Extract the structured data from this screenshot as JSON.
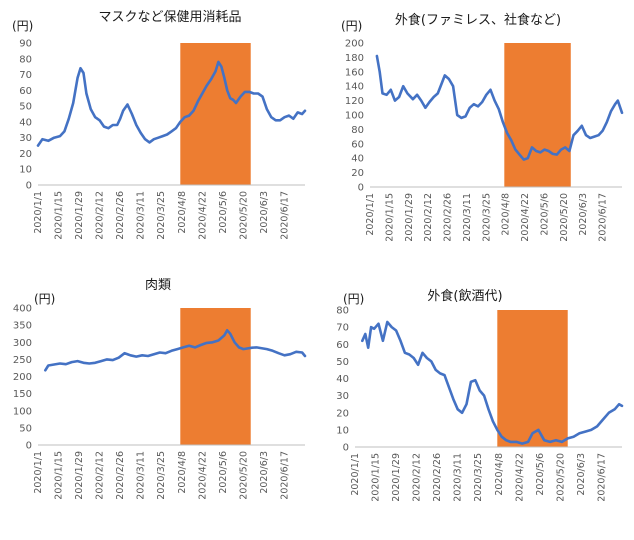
{
  "colors": {
    "line": "#4472c4",
    "highlight": "#ed7d31",
    "axis": "#bfbfbf"
  },
  "chart_data": [
    {
      "type": "line",
      "title": "マスクなど保健用消耗品",
      "unit": "(円)",
      "ylim": [
        0,
        90
      ],
      "yticks": [
        0,
        10,
        20,
        30,
        40,
        50,
        60,
        70,
        80,
        90
      ],
      "xlim": [
        "2020-01-01",
        "2020-07-01"
      ],
      "xtick_labels": [
        "2020/1/1",
        "2020/1/15",
        "2020/1/29",
        "2020/2/12",
        "2020/2/26",
        "2020/3/11",
        "2020/3/25",
        "2020/4/8",
        "2020/4/22",
        "2020/5/6",
        "2020/5/20",
        "2020/6/3",
        "2020/6/17"
      ],
      "highlight_range": [
        "2020-04-07",
        "2020-05-25"
      ],
      "grid": false,
      "series": [
        {
          "x": [
            "2020-01-01",
            "2020-01-04",
            "2020-01-08",
            "2020-01-12",
            "2020-01-16",
            "2020-01-19",
            "2020-01-22",
            "2020-01-25",
            "2020-01-28",
            "2020-01-30",
            "2020-02-01",
            "2020-02-03",
            "2020-02-06",
            "2020-02-09",
            "2020-02-12",
            "2020-02-15",
            "2020-02-18",
            "2020-02-21",
            "2020-02-24",
            "2020-02-26",
            "2020-02-28",
            "2020-03-02",
            "2020-03-05",
            "2020-03-08",
            "2020-03-11",
            "2020-03-14",
            "2020-03-17",
            "2020-03-20",
            "2020-03-23",
            "2020-03-26",
            "2020-03-29",
            "2020-04-01",
            "2020-04-04",
            "2020-04-07",
            "2020-04-10",
            "2020-04-13",
            "2020-04-16",
            "2020-04-19",
            "2020-04-22",
            "2020-04-25",
            "2020-04-28",
            "2020-05-01",
            "2020-05-03",
            "2020-05-05",
            "2020-05-07",
            "2020-05-09",
            "2020-05-11",
            "2020-05-13",
            "2020-05-15",
            "2020-05-18",
            "2020-05-21",
            "2020-05-24",
            "2020-05-27",
            "2020-05-30",
            "2020-06-02",
            "2020-06-05",
            "2020-06-08",
            "2020-06-11",
            "2020-06-14",
            "2020-06-17",
            "2020-06-20",
            "2020-06-23",
            "2020-06-26",
            "2020-06-29",
            "2020-07-01"
          ],
          "y": [
            25,
            29,
            28,
            30,
            31,
            34,
            42,
            52,
            68,
            74,
            71,
            58,
            48,
            43,
            41,
            37,
            36,
            38,
            38,
            42,
            47,
            51,
            45,
            38,
            33,
            29,
            27,
            29,
            30,
            31,
            32,
            34,
            36,
            40,
            43,
            44,
            47,
            53,
            58,
            63,
            67,
            72,
            78,
            75,
            68,
            60,
            55,
            54,
            52,
            56,
            59,
            59,
            58,
            58,
            56,
            48,
            43,
            41,
            41,
            43,
            44,
            42,
            46,
            45,
            47
          ]
        }
      ]
    },
    {
      "type": "line",
      "title": "外食(ファミレス、社食など)",
      "unit": "(円)",
      "ylim": [
        0,
        200
      ],
      "yticks": [
        0,
        20,
        40,
        60,
        80,
        100,
        120,
        140,
        160,
        180,
        200
      ],
      "xlim": [
        "2020-01-01",
        "2020-07-01"
      ],
      "xtick_labels": [
        "2020/1/1",
        "2020/1/15",
        "2020/1/29",
        "2020/2/12",
        "2020/2/26",
        "2020/3/11",
        "2020/3/25",
        "2020/4/8",
        "2020/4/22",
        "2020/5/6",
        "2020/5/20",
        "2020/6/3",
        "2020/6/17"
      ],
      "highlight_range": [
        "2020-04-07",
        "2020-05-25"
      ],
      "grid": false,
      "series": [
        {
          "x": [
            "2020-01-06",
            "2020-01-08",
            "2020-01-10",
            "2020-01-13",
            "2020-01-16",
            "2020-01-19",
            "2020-01-22",
            "2020-01-25",
            "2020-01-28",
            "2020-02-01",
            "2020-02-04",
            "2020-02-07",
            "2020-02-10",
            "2020-02-13",
            "2020-02-16",
            "2020-02-19",
            "2020-02-22",
            "2020-02-24",
            "2020-02-27",
            "2020-03-01",
            "2020-03-04",
            "2020-03-07",
            "2020-03-10",
            "2020-03-13",
            "2020-03-16",
            "2020-03-19",
            "2020-03-22",
            "2020-03-25",
            "2020-03-28",
            "2020-03-31",
            "2020-04-03",
            "2020-04-06",
            "2020-04-09",
            "2020-04-12",
            "2020-04-15",
            "2020-04-18",
            "2020-04-21",
            "2020-04-24",
            "2020-04-27",
            "2020-04-30",
            "2020-05-03",
            "2020-05-06",
            "2020-05-09",
            "2020-05-12",
            "2020-05-15",
            "2020-05-18",
            "2020-05-21",
            "2020-05-24",
            "2020-05-27",
            "2020-05-30",
            "2020-06-02",
            "2020-06-05",
            "2020-06-08",
            "2020-06-11",
            "2020-06-14",
            "2020-06-17",
            "2020-06-20",
            "2020-06-23",
            "2020-06-26",
            "2020-06-28",
            "2020-07-01"
          ],
          "y": [
            182,
            160,
            130,
            128,
            135,
            120,
            125,
            140,
            130,
            122,
            128,
            120,
            110,
            118,
            125,
            130,
            145,
            155,
            150,
            140,
            100,
            96,
            98,
            110,
            115,
            112,
            118,
            128,
            135,
            120,
            108,
            90,
            75,
            65,
            52,
            45,
            38,
            40,
            55,
            50,
            48,
            52,
            50,
            46,
            45,
            52,
            55,
            50,
            72,
            78,
            85,
            72,
            68,
            70,
            72,
            78,
            90,
            105,
            115,
            120,
            103
          ]
        }
      ]
    },
    {
      "type": "line",
      "title": "肉類",
      "unit": "(円)",
      "ylim": [
        0,
        400
      ],
      "yticks": [
        0,
        50,
        100,
        150,
        200,
        250,
        300,
        350,
        400
      ],
      "xlim": [
        "2020-01-01",
        "2020-07-01"
      ],
      "xtick_labels": [
        "2020/1/1",
        "2020/1/15",
        "2020/1/29",
        "2020/2/12",
        "2020/2/26",
        "2020/3/11",
        "2020/3/25",
        "2020/4/8",
        "2020/4/22",
        "2020/5/6",
        "2020/5/20",
        "2020/6/3",
        "2020/6/17"
      ],
      "highlight_range": [
        "2020-04-07",
        "2020-05-25"
      ],
      "grid": false,
      "series": [
        {
          "x": [
            "2020-01-06",
            "2020-01-08",
            "2020-01-12",
            "2020-01-16",
            "2020-01-20",
            "2020-01-24",
            "2020-01-28",
            "2020-02-01",
            "2020-02-05",
            "2020-02-09",
            "2020-02-13",
            "2020-02-17",
            "2020-02-21",
            "2020-02-25",
            "2020-02-29",
            "2020-03-04",
            "2020-03-08",
            "2020-03-12",
            "2020-03-16",
            "2020-03-20",
            "2020-03-24",
            "2020-03-28",
            "2020-04-01",
            "2020-04-05",
            "2020-04-09",
            "2020-04-13",
            "2020-04-17",
            "2020-04-21",
            "2020-04-25",
            "2020-04-29",
            "2020-05-03",
            "2020-05-07",
            "2020-05-09",
            "2020-05-11",
            "2020-05-14",
            "2020-05-17",
            "2020-05-20",
            "2020-05-23",
            "2020-05-26",
            "2020-05-29",
            "2020-06-01",
            "2020-06-05",
            "2020-06-09",
            "2020-06-13",
            "2020-06-17",
            "2020-06-21",
            "2020-06-25",
            "2020-06-29",
            "2020-07-01"
          ],
          "y": [
            218,
            232,
            235,
            238,
            236,
            242,
            245,
            240,
            238,
            240,
            245,
            250,
            248,
            255,
            268,
            262,
            258,
            262,
            260,
            265,
            270,
            268,
            275,
            280,
            285,
            290,
            285,
            292,
            298,
            300,
            305,
            320,
            335,
            325,
            300,
            285,
            280,
            282,
            284,
            285,
            283,
            280,
            275,
            268,
            262,
            265,
            272,
            270,
            260
          ]
        }
      ]
    },
    {
      "type": "line",
      "title": "外食(飲酒代)",
      "unit": "(円)",
      "ylim": [
        0,
        80
      ],
      "yticks": [
        0,
        10,
        20,
        30,
        40,
        50,
        60,
        70,
        80
      ],
      "xlim": [
        "2020-01-01",
        "2020-07-01"
      ],
      "xtick_labels": [
        "2020/1/1",
        "2020/1/15",
        "2020/1/29",
        "2020/2/12",
        "2020/2/26",
        "2020/3/11",
        "2020/3/25",
        "2020/4/8",
        "2020/4/22",
        "2020/5/6",
        "2020/5/20",
        "2020/6/3",
        "2020/6/17"
      ],
      "highlight_range": [
        "2020-04-07",
        "2020-05-25"
      ],
      "grid": false,
      "series": [
        {
          "x": [
            "2020-01-06",
            "2020-01-08",
            "2020-01-10",
            "2020-01-12",
            "2020-01-14",
            "2020-01-17",
            "2020-01-20",
            "2020-01-23",
            "2020-01-26",
            "2020-01-29",
            "2020-02-01",
            "2020-02-04",
            "2020-02-07",
            "2020-02-10",
            "2020-02-13",
            "2020-02-16",
            "2020-02-19",
            "2020-02-22",
            "2020-02-25",
            "2020-02-28",
            "2020-03-02",
            "2020-03-05",
            "2020-03-08",
            "2020-03-11",
            "2020-03-14",
            "2020-03-17",
            "2020-03-20",
            "2020-03-23",
            "2020-03-26",
            "2020-03-29",
            "2020-04-01",
            "2020-04-04",
            "2020-04-07",
            "2020-04-10",
            "2020-04-13",
            "2020-04-16",
            "2020-04-20",
            "2020-04-24",
            "2020-04-28",
            "2020-05-01",
            "2020-05-05",
            "2020-05-09",
            "2020-05-13",
            "2020-05-17",
            "2020-05-21",
            "2020-05-25",
            "2020-05-29",
            "2020-06-02",
            "2020-06-06",
            "2020-06-10",
            "2020-06-14",
            "2020-06-18",
            "2020-06-22",
            "2020-06-26",
            "2020-06-29",
            "2020-07-01"
          ],
          "y": [
            62,
            66,
            58,
            70,
            69,
            72,
            62,
            73,
            70,
            68,
            62,
            55,
            54,
            52,
            48,
            55,
            52,
            50,
            45,
            43,
            42,
            35,
            28,
            22,
            20,
            25,
            38,
            39,
            33,
            30,
            22,
            15,
            10,
            6,
            4,
            3,
            3,
            2,
            3,
            8,
            10,
            4,
            3,
            4,
            3,
            5,
            6,
            8,
            9,
            10,
            12,
            16,
            20,
            22,
            25,
            24
          ]
        }
      ]
    }
  ]
}
